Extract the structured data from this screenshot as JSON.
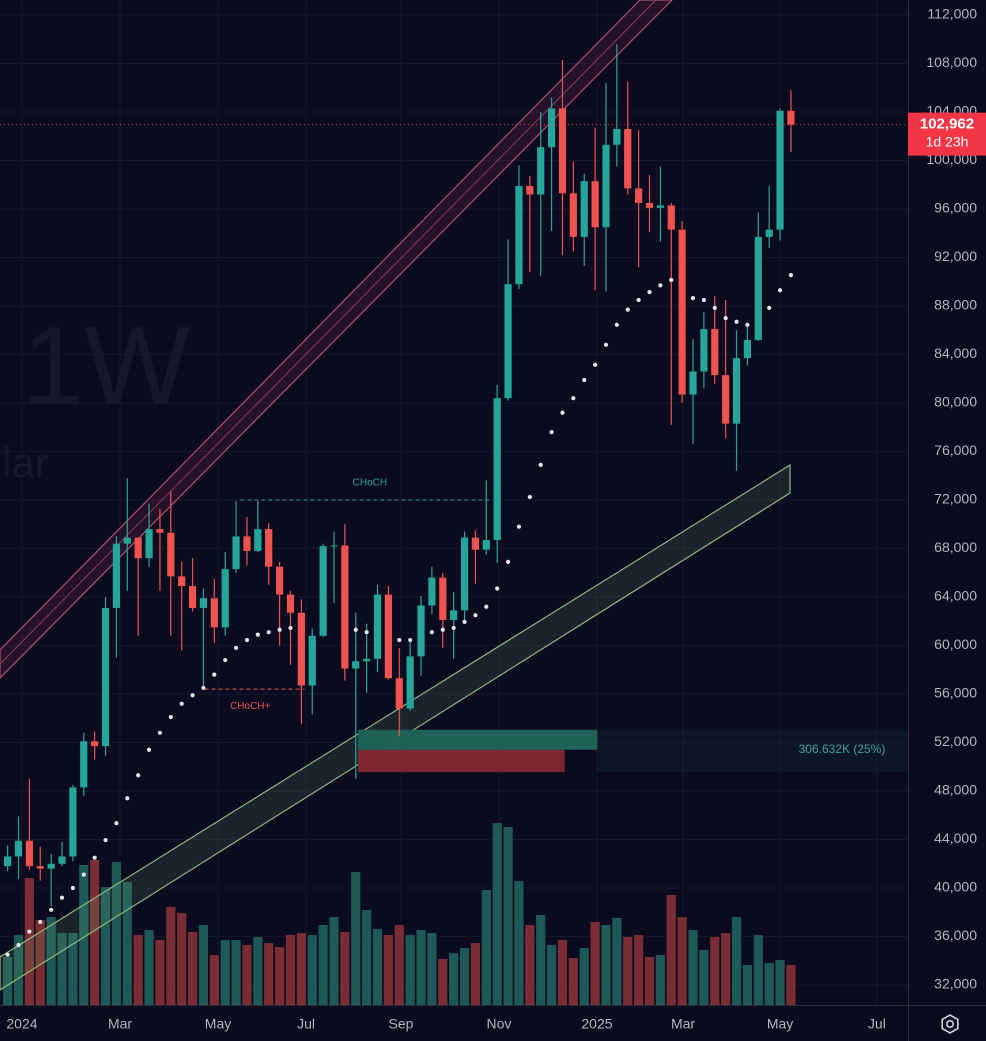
{
  "chart_data": {
    "type": "candlestick",
    "watermark": "1W",
    "watermark_sub": "lar",
    "xlim": [
      -0.7,
      82.76
    ],
    "xticks": [
      {
        "value": 1.32,
        "label": "2024"
      },
      {
        "value": 10.33,
        "label": "Mar"
      },
      {
        "value": 19.34,
        "label": "May"
      },
      {
        "value": 27.43,
        "label": "Jul"
      },
      {
        "value": 36.16,
        "label": "Sep"
      },
      {
        "value": 45.16,
        "label": "Nov"
      },
      {
        "value": 54.17,
        "label": "2025"
      },
      {
        "value": 62.08,
        "label": "Mar"
      },
      {
        "value": 71.0,
        "label": "May"
      },
      {
        "value": 79.9,
        "label": "Jul"
      }
    ],
    "ylim": [
      30350,
      113240
    ],
    "yticks": [
      {
        "value": 32000,
        "label": "32,000"
      },
      {
        "value": 36000,
        "label": "36,000"
      },
      {
        "value": 40000,
        "label": "40,000"
      },
      {
        "value": 44000,
        "label": "44,000"
      },
      {
        "value": 48000,
        "label": "48,000"
      },
      {
        "value": 52000,
        "label": "52,000"
      },
      {
        "value": 56000,
        "label": "56,000"
      },
      {
        "value": 60000,
        "label": "60,000"
      },
      {
        "value": 64000,
        "label": "64,000"
      },
      {
        "value": 68000,
        "label": "68,000"
      },
      {
        "value": 72000,
        "label": "72,000"
      },
      {
        "value": 76000,
        "label": "76,000"
      },
      {
        "value": 80000,
        "label": "80,000"
      },
      {
        "value": 84000,
        "label": "84,000"
      },
      {
        "value": 88000,
        "label": "88,000"
      },
      {
        "value": 92000,
        "label": "92,000"
      },
      {
        "value": 96000,
        "label": "96,000"
      },
      {
        "value": 100000,
        "label": "100,000"
      },
      {
        "value": 104000,
        "label": "104,000"
      },
      {
        "value": 108000,
        "label": "108,000"
      },
      {
        "value": 112000,
        "label": "112,000"
      }
    ],
    "grid": true,
    "up_color": "#26a69a",
    "down_color": "#ef5350",
    "open": [
      41800,
      42600,
      43900,
      41800,
      41600,
      42000,
      42600,
      48300,
      52100,
      51700,
      63100,
      68400,
      68900,
      67200,
      69600,
      69300,
      65700,
      64900,
      63100,
      63900,
      61500,
      66300,
      69000,
      67800,
      69600,
      66500,
      64200,
      62700,
      56700,
      60800,
      68200,
      68250,
      58100,
      58700,
      58900,
      64200,
      57300,
      54800,
      59100,
      63300,
      65600,
      62100,
      62900,
      68900,
      67900,
      68700,
      80400,
      89800,
      97900,
      97200,
      101100,
      104300,
      97300,
      93700,
      98300,
      94500,
      101300,
      102600,
      97700,
      96500,
      96100,
      96300,
      94300,
      80700,
      82600,
      86100,
      82300,
      78300,
      83700,
      85200,
      93700,
      94300,
      104100
    ],
    "high": [
      43500,
      45900,
      49000,
      43400,
      42800,
      43800,
      48500,
      52800,
      52900,
      64000,
      69000,
      73800,
      68900,
      71700,
      71300,
      72700,
      66900,
      67200,
      64700,
      65500,
      67700,
      71900,
      70600,
      71900,
      70100,
      66900,
      64500,
      63800,
      61400,
      68400,
      69400,
      70000,
      62700,
      61800,
      65000,
      64900,
      59800,
      60600,
      64100,
      66500,
      66000,
      64400,
      69400,
      69500,
      73600,
      81500,
      93500,
      99600,
      98700,
      104000,
      105200,
      108300,
      99900,
      98900,
      102700,
      106400,
      109600,
      106500,
      102500,
      98800,
      99500,
      96500,
      95000,
      85300,
      87500,
      88800,
      88500,
      86000,
      86400,
      95700,
      97900,
      104300,
      105800
    ],
    "low": [
      41400,
      40750,
      41500,
      40600,
      38500,
      41800,
      42200,
      47600,
      50600,
      50900,
      59000,
      64500,
      60800,
      66500,
      64500,
      60800,
      59600,
      62800,
      56500,
      60200,
      60800,
      66000,
      66600,
      67700,
      65000,
      60000,
      58400,
      53500,
      54300,
      60700,
      63500,
      57100,
      49000,
      56100,
      57800,
      57200,
      52500,
      54600,
      57500,
      62600,
      59800,
      58900,
      62000,
      65100,
      67500,
      66800,
      80200,
      89400,
      90800,
      90500,
      94200,
      92200,
      92500,
      91300,
      89300,
      89200,
      99500,
      97200,
      91200,
      94100,
      93300,
      78200,
      80000,
      76600,
      81200,
      81600,
      77100,
      74400,
      83100,
      85100,
      92800,
      93400,
      100700
    ],
    "close": [
      42600,
      43900,
      41800,
      41600,
      42000,
      42600,
      48300,
      52100,
      51700,
      63100,
      68400,
      68900,
      67200,
      69600,
      69300,
      65700,
      64900,
      63100,
      63900,
      61500,
      66300,
      69000,
      67800,
      69600,
      66500,
      64200,
      62700,
      56700,
      60800,
      68200,
      68250,
      58100,
      58700,
      58900,
      64200,
      57300,
      54800,
      59100,
      63300,
      65600,
      62100,
      62900,
      68900,
      67900,
      68700,
      80400,
      89800,
      97900,
      97200,
      101100,
      104300,
      97300,
      93700,
      98300,
      94500,
      101300,
      102600,
      97700,
      96500,
      96100,
      96300,
      94300,
      80700,
      82600,
      86100,
      82300,
      78300,
      83700,
      85200,
      93700,
      94300,
      104100,
      102962
    ],
    "volume": [
      48,
      70,
      127,
      85,
      88,
      72,
      72,
      140,
      145,
      118,
      143,
      123,
      70,
      75,
      65,
      98,
      92,
      73,
      80,
      50,
      65,
      65,
      60,
      68,
      62,
      58,
      70,
      72,
      70,
      80,
      88,
      73,
      133,
      95,
      76,
      70,
      80,
      70,
      75,
      72,
      46,
      52,
      57,
      62,
      115,
      182,
      178,
      124,
      80,
      90,
      60,
      65,
      47,
      57,
      83,
      80,
      87,
      68,
      70,
      48,
      50,
      110,
      88,
      75,
      55,
      68,
      72,
      88,
      40,
      70,
      42,
      45,
      40
    ],
    "sar": [
      34500,
      35300,
      36400,
      37200,
      38200,
      39200,
      40000,
      41100,
      42500,
      43950,
      45350,
      47400,
      49300,
      51400,
      52800,
      54100,
      55200,
      55900,
      56500,
      57600,
      58800,
      59800,
      60450,
      60900,
      61100,
      61300,
      61450,
      null,
      null,
      null,
      null,
      null,
      61300,
      61100,
      null,
      null,
      60450,
      60450,
      null,
      61100,
      61300,
      61450,
      61950,
      62500,
      63200,
      64700,
      66900,
      69800,
      72250,
      74900,
      77600,
      79200,
      80400,
      81900,
      83150,
      84800,
      86450,
      87700,
      88500,
      89150,
      89700,
      90150,
      null,
      88650,
      88500,
      87850,
      87000,
      86700,
      86450,
      null,
      87850,
      89300,
      90550
    ],
    "price_marker": {
      "value": 102962,
      "label": "102,962",
      "countdown": "1d 23h"
    },
    "annotations": [
      {
        "text": "CHoCH",
        "price": 72000
      },
      {
        "text": "CHoCH+",
        "price": 56400
      }
    ],
    "position": {
      "target": 53050,
      "entry": 51400,
      "stop": 49550,
      "label": "306.632K (25%)"
    }
  }
}
